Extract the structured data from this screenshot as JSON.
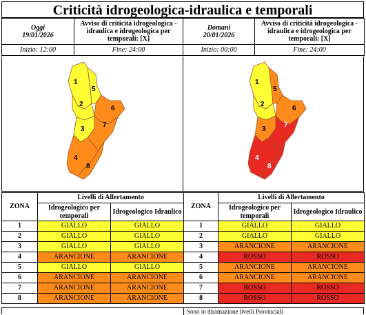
{
  "title": "Criticità idrogeologica-idraulica e temporali",
  "today": {
    "label": "Oggi",
    "date": "19/01/2026",
    "avviso": "Avviso di criticità idrogeologica - idraulica e idrogeologica per temporali: [X]",
    "inizio": "Inizio: 12:00",
    "fine": "Fine: 24:00"
  },
  "tomorrow": {
    "label": "Domani",
    "date": "20/01/2026",
    "avviso": "Avviso di criticità idrogeologica - idraulica e idrogeologica per temporali: [X]",
    "inizio": "Inizio: 00:00",
    "fine": "Fine: 24:00"
  },
  "colors": {
    "GIALLO": "#ffff33",
    "ARANCIONE": "#ff8c1a",
    "ROSSO": "#e82a23"
  },
  "table_headers": {
    "zona": "ZONA",
    "livelli": "Livelli di Allertamento",
    "temporali": "Idrogeologico per temporali",
    "idraulico": "Idrogeologico Idraulico"
  },
  "levels_today": [
    {
      "zona": "1",
      "temporali": "GIALLO",
      "idraulico": "GIALLO"
    },
    {
      "zona": "2",
      "temporali": "GIALLO",
      "idraulico": "GIALLO"
    },
    {
      "zona": "3",
      "temporali": "GIALLO",
      "idraulico": "GIALLO"
    },
    {
      "zona": "4",
      "temporali": "ARANCIONE",
      "idraulico": "ARANCIONE"
    },
    {
      "zona": "5",
      "temporali": "GIALLO",
      "idraulico": "GIALLO"
    },
    {
      "zona": "6",
      "temporali": "ARANCIONE",
      "idraulico": "ARANCIONE"
    },
    {
      "zona": "7",
      "temporali": "ARANCIONE",
      "idraulico": "ARANCIONE"
    },
    {
      "zona": "8",
      "temporali": "ARANCIONE",
      "idraulico": "ARANCIONE"
    }
  ],
  "levels_tomorrow": [
    {
      "zona": "1",
      "temporali": "GIALLO",
      "idraulico": "GIALLO"
    },
    {
      "zona": "2",
      "temporali": "GIALLO",
      "idraulico": "GIALLO"
    },
    {
      "zona": "3",
      "temporali": "ARANCIONE",
      "idraulico": "ARANCIONE"
    },
    {
      "zona": "4",
      "temporali": "ROSSO",
      "idraulico": "ROSSO"
    },
    {
      "zona": "5",
      "temporali": "ARANCIONE",
      "idraulico": "ARANCIONE"
    },
    {
      "zona": "6",
      "temporali": "ARANCIONE",
      "idraulico": "ARANCIONE"
    },
    {
      "zona": "7",
      "temporali": "ROSSO",
      "idraulico": "ROSSO"
    },
    {
      "zona": "8",
      "temporali": "ROSSO",
      "idraulico": "ROSSO"
    }
  ],
  "footer_text": "Sono in diramazione livelli Provinciali"
}
